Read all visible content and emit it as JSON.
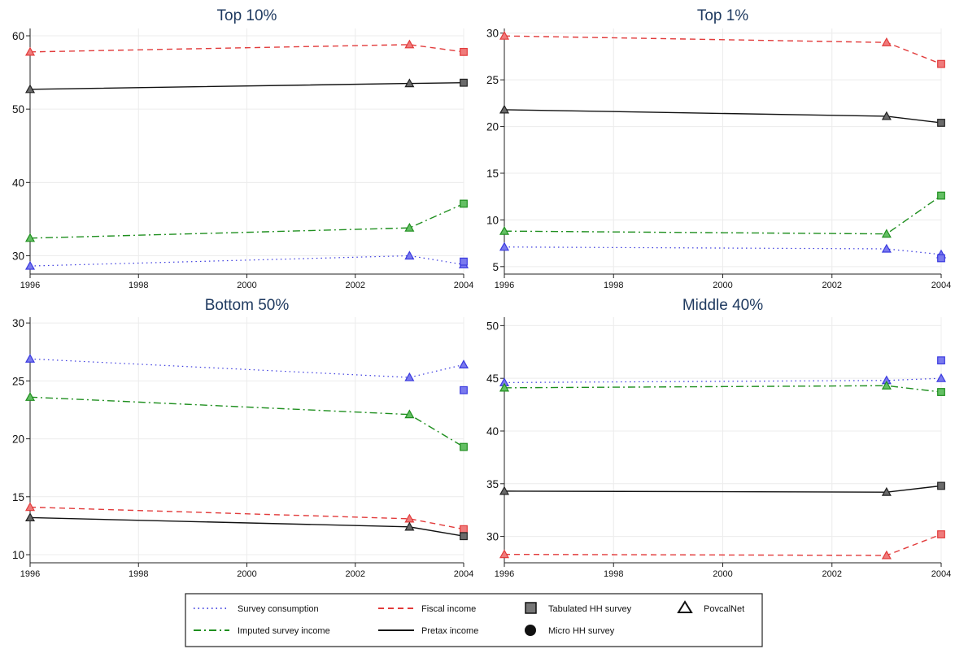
{
  "colors": {
    "survey_consumption": "#3a3adf",
    "imputed_survey_income": "#1f8f1f",
    "fiscal_income": "#e23b3b",
    "pretax_income": "#111111",
    "grid": "#ececec",
    "title": "#1f3a60"
  },
  "chart_data": [
    {
      "type": "line",
      "title": "Top 10%",
      "x": [
        1996,
        2003,
        2004
      ],
      "xticks": [
        1996,
        1998,
        2000,
        2002,
        2004
      ],
      "yticks": [
        30,
        40,
        50,
        60
      ],
      "ylim": [
        27.5,
        61
      ],
      "xlim": [
        1996,
        2004
      ],
      "grid": true,
      "series": [
        {
          "name": "Fiscal income",
          "values": [
            57.8,
            58.8,
            57.8
          ],
          "markers": [
            "triangle",
            "triangle",
            "square"
          ]
        },
        {
          "name": "Pretax income",
          "values": [
            52.7,
            53.5,
            53.6
          ],
          "markers": [
            "triangle",
            "triangle",
            "square"
          ]
        },
        {
          "name": "Imputed survey income",
          "values": [
            32.4,
            33.8,
            37.1
          ],
          "markers": [
            "triangle",
            "triangle",
            "square"
          ]
        },
        {
          "name": "Survey consumption",
          "values": [
            28.6,
            30.0,
            28.8
          ],
          "markers": [
            "triangle",
            "triangle",
            "triangle"
          ]
        }
      ],
      "extra_points": [
        {
          "series": "Survey consumption",
          "x": 2004,
          "y": 29.2,
          "marker": "square"
        }
      ]
    },
    {
      "type": "line",
      "title": "Top 1%",
      "x": [
        1996,
        2003,
        2004
      ],
      "xticks": [
        1996,
        1998,
        2000,
        2002,
        2004
      ],
      "yticks": [
        5,
        10,
        15,
        20,
        25,
        30
      ],
      "ylim": [
        4.2,
        30.5
      ],
      "xlim": [
        1996,
        2004
      ],
      "grid": true,
      "series": [
        {
          "name": "Fiscal income",
          "values": [
            29.7,
            29.0,
            26.7
          ],
          "markers": [
            "triangle",
            "triangle",
            "square"
          ]
        },
        {
          "name": "Pretax income",
          "values": [
            21.8,
            21.1,
            20.4
          ],
          "markers": [
            "triangle",
            "triangle",
            "square"
          ]
        },
        {
          "name": "Imputed survey income",
          "values": [
            8.8,
            8.5,
            12.6
          ],
          "markers": [
            "triangle",
            "triangle",
            "square"
          ]
        },
        {
          "name": "Survey consumption",
          "values": [
            7.1,
            6.9,
            6.3
          ],
          "markers": [
            "triangle",
            "triangle",
            "triangle"
          ]
        }
      ],
      "extra_points": [
        {
          "series": "Survey consumption",
          "x": 2004,
          "y": 5.9,
          "marker": "square"
        }
      ]
    },
    {
      "type": "line",
      "title": "Bottom 50%",
      "x": [
        1996,
        2003,
        2004
      ],
      "xticks": [
        1996,
        1998,
        2000,
        2002,
        2004
      ],
      "yticks": [
        10,
        15,
        20,
        25,
        30
      ],
      "ylim": [
        9.3,
        30.5
      ],
      "xlim": [
        1996,
        2004
      ],
      "grid": true,
      "series": [
        {
          "name": "Survey consumption",
          "values": [
            26.9,
            25.3,
            26.4
          ],
          "markers": [
            "triangle",
            "triangle",
            "triangle"
          ]
        },
        {
          "name": "Imputed survey income",
          "values": [
            23.6,
            22.1,
            19.3
          ],
          "markers": [
            "triangle",
            "triangle",
            "square"
          ]
        },
        {
          "name": "Fiscal income",
          "values": [
            14.1,
            13.1,
            12.2
          ],
          "markers": [
            "triangle",
            "triangle",
            "square"
          ]
        },
        {
          "name": "Pretax income",
          "values": [
            13.2,
            12.4,
            11.6
          ],
          "markers": [
            "triangle",
            "triangle",
            "square"
          ]
        }
      ],
      "extra_points": [
        {
          "series": "Survey consumption",
          "x": 2004,
          "y": 24.2,
          "marker": "square"
        }
      ]
    },
    {
      "type": "line",
      "title": "Middle 40%",
      "x": [
        1996,
        2003,
        2004
      ],
      "xticks": [
        1996,
        1998,
        2000,
        2002,
        2004
      ],
      "yticks": [
        30,
        35,
        40,
        45,
        50
      ],
      "ylim": [
        27.5,
        50.8
      ],
      "xlim": [
        1996,
        2004
      ],
      "grid": true,
      "series": [
        {
          "name": "Survey consumption",
          "values": [
            44.6,
            44.8,
            45.0
          ],
          "markers": [
            "triangle",
            "triangle",
            "triangle"
          ]
        },
        {
          "name": "Imputed survey income",
          "values": [
            44.1,
            44.3,
            43.7
          ],
          "markers": [
            "triangle",
            "triangle",
            "square"
          ]
        },
        {
          "name": "Pretax income",
          "values": [
            34.3,
            34.2,
            34.8
          ],
          "markers": [
            "triangle",
            "triangle",
            "square"
          ]
        },
        {
          "name": "Fiscal income",
          "values": [
            28.3,
            28.2,
            30.2
          ],
          "markers": [
            "triangle",
            "triangle",
            "square"
          ]
        }
      ],
      "extra_points": [
        {
          "series": "Survey consumption",
          "x": 2004,
          "y": 46.7,
          "marker": "square"
        }
      ]
    }
  ],
  "legend": {
    "position": "bottom",
    "items": [
      {
        "label": "Survey consumption",
        "kind": "line",
        "series": "survey_consumption"
      },
      {
        "label": "Fiscal income",
        "kind": "line",
        "series": "fiscal_income"
      },
      {
        "label": "Tabulated HH survey",
        "kind": "square"
      },
      {
        "label": "PovcalNet",
        "kind": "triangle"
      },
      {
        "label": "Imputed survey income",
        "kind": "line",
        "series": "imputed_survey_income"
      },
      {
        "label": "Pretax income",
        "kind": "line",
        "series": "pretax_income"
      },
      {
        "label": "Micro HH survey",
        "kind": "circle"
      }
    ]
  }
}
